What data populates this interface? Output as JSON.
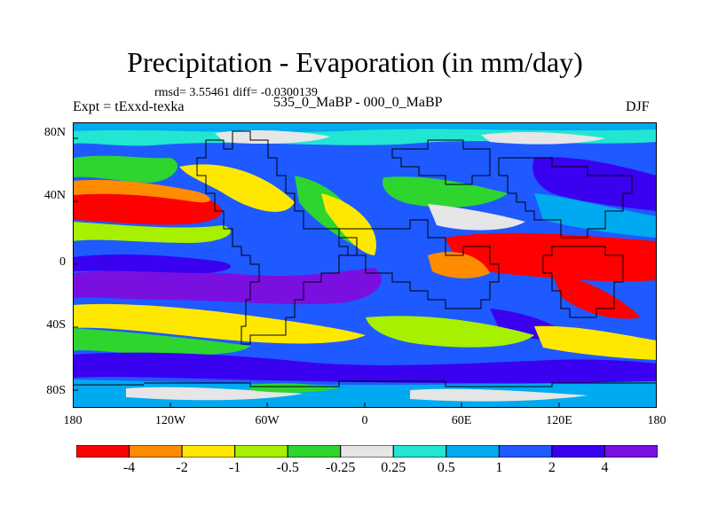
{
  "title": "Precipitation - Evaporation (in mm/day)",
  "stats": "rmsd= 3.55461 diff= -0.0300139",
  "experiment": "Expt = tExxd-texka",
  "difference": "535_0_MaBP - 000_0_MaBP",
  "season": "DJF",
  "map": {
    "lat_ticks": [
      "80N",
      "40N",
      "0",
      "40S",
      "80S"
    ],
    "lon_ticks": [
      "180",
      "120W",
      "60W",
      "0",
      "60E",
      "120E",
      "180"
    ]
  },
  "colorbar": {
    "labels": [
      "-4",
      "-2",
      "-1",
      "-0.5",
      "-0.25",
      "0.25",
      "0.5",
      "1",
      "2",
      "4"
    ],
    "colors": [
      "#ff0000",
      "#ff8c00",
      "#ffe800",
      "#a6f000",
      "#2ed52e",
      "#e6e6e6",
      "#22e6d2",
      "#00aaf0",
      "#1e5aff",
      "#3a00f0",
      "#7a10e0"
    ]
  },
  "colors": {
    "background": "#ffffff",
    "coastline": "#000000"
  }
}
